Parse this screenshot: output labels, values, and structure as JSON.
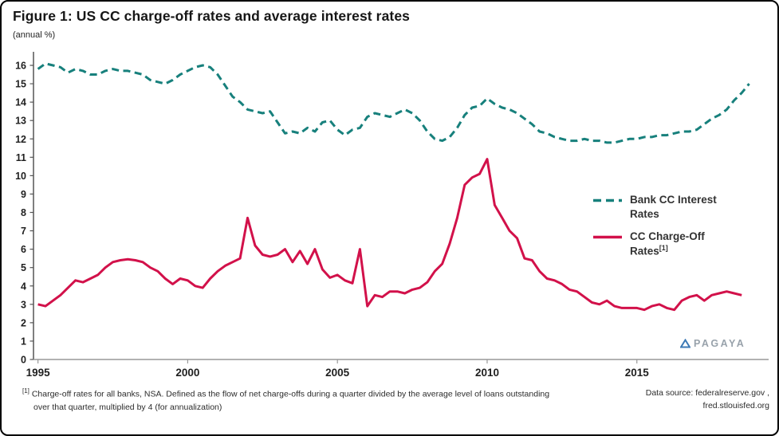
{
  "header": {
    "title": "Figure 1: US CC charge-off rates and average interest rates",
    "subtitle": "(annual %)"
  },
  "chart_data": {
    "type": "line",
    "title": "Figure 1: US CC charge-off rates and average interest rates",
    "unit": "annual %",
    "grid": false,
    "legend_position": "right-inside",
    "xlim": [
      1994.85,
      2019.4
    ],
    "ylim": [
      0,
      16
    ],
    "x_ticks": [
      1995,
      2000,
      2005,
      2010,
      2015
    ],
    "y_ticks": [
      0,
      1,
      2,
      3,
      4,
      5,
      6,
      7,
      8,
      9,
      10,
      11,
      12,
      13,
      14,
      15,
      16
    ],
    "x_unit": "year (quarterly observations)",
    "series": [
      {
        "name": "Bank CC Interest Rates",
        "color": "#17807c",
        "style": "dashed",
        "x_start": 1995.0,
        "x_step": 0.25,
        "values": [
          15.8,
          16.1,
          16.0,
          15.9,
          15.6,
          15.8,
          15.7,
          15.5,
          15.5,
          15.7,
          15.8,
          15.7,
          15.7,
          15.6,
          15.5,
          15.2,
          15.1,
          15.0,
          15.2,
          15.5,
          15.7,
          15.9,
          16.0,
          15.9,
          15.5,
          14.9,
          14.3,
          14.0,
          13.6,
          13.5,
          13.4,
          13.5,
          12.9,
          12.3,
          12.4,
          12.3,
          12.6,
          12.4,
          12.9,
          13.0,
          12.5,
          12.2,
          12.5,
          12.6,
          13.2,
          13.4,
          13.3,
          13.2,
          13.4,
          13.6,
          13.4,
          13.0,
          12.4,
          12.0,
          11.9,
          12.1,
          12.6,
          13.3,
          13.7,
          13.8,
          14.2,
          13.9,
          13.7,
          13.6,
          13.4,
          13.1,
          12.8,
          12.4,
          12.3,
          12.1,
          12.0,
          11.9,
          11.9,
          12.0,
          11.9,
          11.9,
          11.8,
          11.8,
          11.9,
          12.0,
          12.0,
          12.1,
          12.1,
          12.2,
          12.2,
          12.3,
          12.4,
          12.4,
          12.5,
          12.8,
          13.1,
          13.3,
          13.6,
          14.1,
          14.5,
          15.0
        ]
      },
      {
        "name": "CC Charge-Off Rates",
        "footnote_ref": "[1]",
        "color": "#d2114a",
        "style": "solid",
        "x_start": 1995.0,
        "x_step": 0.25,
        "values": [
          3.0,
          2.9,
          3.2,
          3.5,
          3.9,
          4.3,
          4.2,
          4.4,
          4.6,
          5.0,
          5.3,
          5.4,
          5.45,
          5.4,
          5.3,
          5.0,
          4.8,
          4.4,
          4.1,
          4.4,
          4.3,
          4.0,
          3.9,
          4.4,
          4.8,
          5.1,
          5.3,
          5.5,
          7.7,
          6.2,
          5.7,
          5.6,
          5.7,
          6.0,
          5.3,
          5.9,
          5.2,
          6.0,
          4.9,
          4.45,
          4.6,
          4.3,
          4.15,
          6.0,
          2.9,
          3.5,
          3.4,
          3.7,
          3.7,
          3.6,
          3.8,
          3.9,
          4.2,
          4.8,
          5.2,
          6.3,
          7.7,
          9.5,
          9.9,
          10.1,
          10.9,
          8.4,
          7.7,
          7.0,
          6.6,
          5.5,
          5.4,
          4.8,
          4.4,
          4.3,
          4.1,
          3.8,
          3.7,
          3.4,
          3.1,
          3.0,
          3.2,
          2.9,
          2.8,
          2.8,
          2.8,
          2.7,
          2.9,
          3.0,
          2.8,
          2.7,
          3.2,
          3.4,
          3.5,
          3.2,
          3.5,
          3.6,
          3.7,
          3.6,
          3.5
        ]
      }
    ]
  },
  "legend": {
    "items": [
      {
        "label": "Bank CC Interest Rates"
      },
      {
        "label": "CC Charge-Off Rates",
        "sup": "[1]"
      }
    ]
  },
  "watermark": {
    "text": "PAGAYA"
  },
  "footer": {
    "footnote_marker": "[1]",
    "footnote_line1": "Charge-off rates for all banks, NSA. Defined as the flow of net charge-offs during a quarter divided by the average level of loans outstanding",
    "footnote_line2": "over that quarter, multiplied by 4 (for annualization)",
    "source_line1": "Data source: federalreserve.gov ,",
    "source_line2": "fred.stlouisfed.org"
  }
}
